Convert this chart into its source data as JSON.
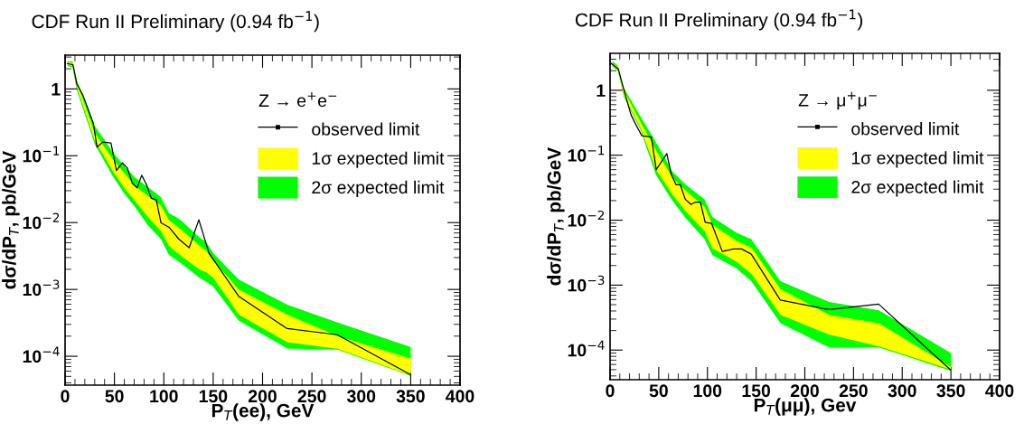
{
  "chart_data": [
    {
      "type": "line",
      "title": "CDF Run II Preliminary (0.94 fb$^{−1}$)",
      "xlabel": "P$_{T}$(ee), GeV",
      "ylabel": "dσ/dP$_{T}$, pb/GeV",
      "legend_title": "Z → e$^{+}$e$^{−}$",
      "legend": "top right",
      "log": "y",
      "xlim": [
        0,
        400
      ],
      "xticks": [
        0,
        50,
        100,
        150,
        200,
        250,
        300,
        350,
        400
      ],
      "ylim": [
        3.7e-05,
        3.2
      ],
      "yticks": [
        {
          "value": 0.0001,
          "label": "10$^{−4}$"
        },
        {
          "value": 0.001,
          "label": "10$^{−3}$"
        },
        {
          "value": 0.01,
          "label": "10$^{−2}$"
        },
        {
          "value": 0.1,
          "label": "10$^{−1}$"
        },
        {
          "value": 1,
          "label": "1"
        }
      ],
      "series": [
        {
          "name": "2σ expected limit",
          "type": "area",
          "color": "#00ff00",
          "x": [
            2.5,
            7.5,
            12,
            30,
            48,
            60,
            71,
            84,
            97,
            105,
            117,
            136,
            143,
            150,
            176,
            225,
            276,
            350
          ],
          "values": [
            null,
            null,
            null,
            null,
            null,
            null,
            null,
            null,
            null,
            null,
            null,
            null,
            null,
            null,
            null,
            null,
            null,
            null
          ],
          "lower": [
            2.2,
            2.1,
            0.95,
            0.15,
            0.05,
            0.027,
            0.017,
            0.009,
            0.0057,
            0.0033,
            0.0025,
            0.0015,
            0.0013,
            0.0011,
            0.00034,
            0.000131,
            0.000126,
            5.1e-05
          ],
          "upper": [
            2.6,
            2.6,
            1.34,
            0.28,
            0.115,
            0.07,
            0.047,
            0.034,
            0.024,
            0.014,
            0.011,
            0.006,
            0.0051,
            0.0035,
            0.0014,
            0.00059,
            0.00032,
            0.000138
          ]
        },
        {
          "name": "1σ expected limit",
          "type": "area",
          "color": "#ffff00",
          "x": [
            2.5,
            7.5,
            12,
            30,
            48,
            60,
            71,
            84,
            97,
            105,
            117,
            136,
            143,
            150,
            176,
            225,
            276,
            350
          ],
          "values": [
            null,
            null,
            null,
            null,
            null,
            null,
            null,
            null,
            null,
            null,
            null,
            null,
            null,
            null,
            null,
            null,
            null,
            null
          ],
          "lower": [
            2.3,
            2.2,
            1.05,
            0.17,
            0.06,
            0.033,
            0.021,
            0.012,
            0.0075,
            0.0045,
            0.0032,
            0.002,
            0.0018,
            0.0015,
            0.00042,
            0.000163,
            0.00013,
            5.2e-05
          ],
          "upper": [
            2.5,
            2.5,
            1.25,
            0.22,
            0.09,
            0.055,
            0.035,
            0.025,
            0.018,
            0.011,
            0.008,
            0.0045,
            0.0038,
            0.0027,
            0.001,
            0.00042,
            0.0002,
            9.3e-05
          ]
        },
        {
          "name": "observed limit",
          "type": "line",
          "color": "#000000",
          "x": [
            2.5,
            8,
            12,
            18,
            28.5,
            32.4,
            38,
            46.5,
            52,
            58,
            63,
            68,
            73,
            77.6,
            82.5,
            87.4,
            92.3,
            97.2,
            105.4,
            115,
            125.7,
            135.5,
            145.7,
            175.8,
            224.9,
            275.6,
            350
          ],
          "values": [
            2.4,
            2.3,
            1.17,
            0.81,
            0.31,
            0.134,
            0.16,
            0.155,
            0.06,
            0.078,
            0.066,
            0.039,
            0.033,
            0.051,
            0.037,
            0.023,
            0.022,
            0.0099,
            0.0085,
            0.0057,
            0.0042,
            0.011,
            0.0035,
            0.00079,
            0.00026,
            0.00021,
            5.3e-05
          ]
        }
      ]
    },
    {
      "type": "line",
      "title": "CDF Run II Preliminary (0.94 fb$^{−1}$)",
      "xlabel": "P$_{T}$(μμ), Gev",
      "ylabel": "dσ/dP$_{T}$, pb/GeV",
      "legend_title": "Z → μ$^{+}$μ$^{−}$",
      "legend": "top right",
      "log": "y",
      "xlim": [
        0,
        400
      ],
      "xticks": [
        0,
        50,
        100,
        150,
        200,
        250,
        300,
        350,
        400
      ],
      "ylim": [
        3.5e-05,
        3.7
      ],
      "yticks": [
        {
          "value": 0.0001,
          "label": "10$^{−4}$"
        },
        {
          "value": 0.001,
          "label": "10$^{−3}$"
        },
        {
          "value": 0.01,
          "label": "10$^{−2}$"
        },
        {
          "value": 0.1,
          "label": "10$^{−1}$"
        },
        {
          "value": 1,
          "label": "1"
        }
      ],
      "series": [
        {
          "name": "2σ expected limit",
          "type": "area",
          "color": "#00ff00",
          "x": [
            2.5,
            8,
            14,
            31,
            47,
            64,
            77,
            97,
            105,
            130,
            145,
            175,
            225,
            276,
            350
          ],
          "values": [
            null,
            null,
            null,
            null,
            null,
            null,
            null,
            null,
            null,
            null,
            null,
            null,
            null,
            null,
            null
          ],
          "lower": [
            2.3,
            2.0,
            0.8,
            0.25,
            0.05,
            0.02,
            0.011,
            0.0051,
            0.0029,
            0.0018,
            0.00115,
            0.00026,
            0.00011,
            0.00011,
            4.8e-05
          ],
          "upper": [
            2.8,
            2.4,
            1.1,
            0.4,
            0.16,
            0.056,
            0.036,
            0.021,
            0.0112,
            0.0064,
            0.0051,
            0.00115,
            0.00055,
            0.00041,
            9e-05
          ]
        },
        {
          "name": "1σ expected limit",
          "type": "area",
          "color": "#ffff00",
          "x": [
            2.5,
            8,
            14,
            31,
            47,
            64,
            77,
            97,
            105,
            130,
            145,
            175,
            225,
            276,
            350
          ],
          "values": [
            null,
            null,
            null,
            null,
            null,
            null,
            null,
            null,
            null,
            null,
            null,
            null,
            null,
            null,
            null
          ],
          "lower": [
            2.4,
            2.1,
            0.85,
            0.27,
            0.06,
            0.025,
            0.014,
            0.0068,
            0.0037,
            0.0023,
            0.0015,
            0.00035,
            0.000174,
            0.000115,
            5e-05
          ],
          "upper": [
            2.6,
            2.3,
            1.0,
            0.33,
            0.12,
            0.045,
            0.029,
            0.016,
            0.0085,
            0.0048,
            0.0038,
            0.00087,
            0.00035,
            0.00026,
            5.5e-05
          ]
        },
        {
          "name": "observed limit",
          "type": "line",
          "color": "#000000",
          "x": [
            1,
            8.3,
            14.9,
            21.5,
            25.8,
            32.5,
            42.4,
            47.4,
            58.3,
            62.9,
            67.9,
            72.2,
            77.2,
            83.1,
            87.7,
            92.7,
            97.7,
            104.3,
            115.2,
            126.8,
            135.1,
            145,
            174.8,
            224.5,
            275.8,
            349.3
          ],
          "values": [
            2.6,
            2.15,
            0.93,
            0.42,
            0.31,
            0.2,
            0.19,
            0.06,
            0.106,
            0.05,
            0.035,
            0.035,
            0.021,
            0.0175,
            0.019,
            0.019,
            0.0093,
            0.0089,
            0.0033,
            0.0036,
            0.0036,
            0.003,
            0.00059,
            0.00042,
            0.00051,
            5e-05
          ]
        }
      ]
    }
  ]
}
